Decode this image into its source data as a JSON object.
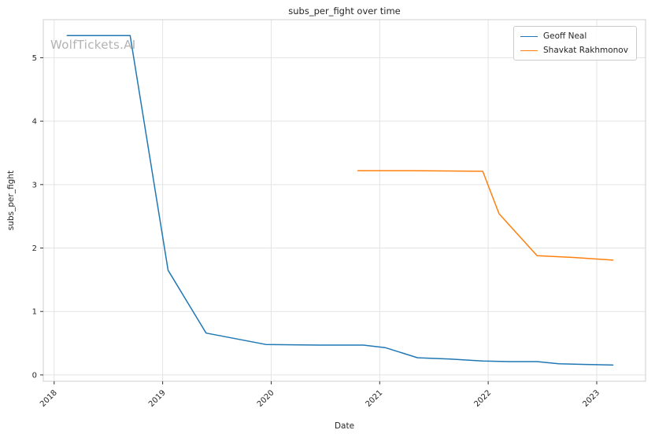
{
  "watermark": {
    "text": "WolfTickets.AI",
    "color": "#b3b3b3"
  },
  "chart_data": {
    "type": "line",
    "title": "subs_per_fight over time",
    "xlabel": "Date",
    "ylabel": "subs_per_fight",
    "grid": true,
    "legend_position": "upper right",
    "xlim": [
      2017.9,
      2023.45
    ],
    "ylim": [
      -0.1,
      5.6
    ],
    "x_ticks": [
      2018,
      2019,
      2020,
      2021,
      2022,
      2023
    ],
    "x_tick_labels": [
      "2018",
      "2019",
      "2020",
      "2021",
      "2022",
      "2023"
    ],
    "y_ticks": [
      0,
      1,
      2,
      3,
      4,
      5
    ],
    "y_tick_labels": [
      "0",
      "1",
      "2",
      "3",
      "4",
      "5"
    ],
    "grid_color": "#e3e3e3",
    "spine_color": "#cfcfcf",
    "tick_color": "#333333",
    "series": [
      {
        "name": "Geoff Neal",
        "color": "#1f77b4",
        "x": [
          2018.12,
          2018.7,
          2019.05,
          2019.4,
          2019.95,
          2020.45,
          2020.85,
          2021.05,
          2021.35,
          2021.65,
          2021.95,
          2022.2,
          2022.45,
          2022.65,
          2022.9,
          2023.15
        ],
        "y": [
          5.35,
          5.35,
          1.65,
          0.66,
          0.48,
          0.47,
          0.47,
          0.43,
          0.27,
          0.25,
          0.22,
          0.21,
          0.21,
          0.175,
          0.165,
          0.155
        ]
      },
      {
        "name": "Shavkat Rakhmonov",
        "color": "#ff7f0e",
        "x": [
          2020.8,
          2021.3,
          2021.95,
          2022.1,
          2022.45,
          2022.8,
          2023.15
        ],
        "y": [
          3.22,
          3.22,
          3.21,
          2.54,
          1.88,
          1.85,
          1.81
        ]
      }
    ]
  }
}
